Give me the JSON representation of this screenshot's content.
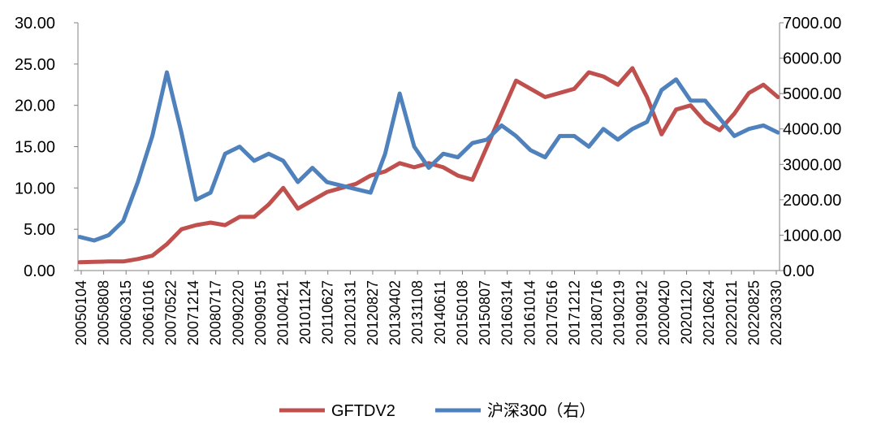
{
  "chart_data": {
    "type": "line",
    "title": "",
    "xlabel": "",
    "ylabel": "",
    "ylabel_right": "",
    "ylim": [
      0,
      30
    ],
    "ylim_right": [
      0,
      7000
    ],
    "grid": false,
    "legend_position": "bottom",
    "y_ticks_left": [
      "0.00",
      "5.00",
      "10.00",
      "15.00",
      "20.00",
      "25.00",
      "30.00"
    ],
    "y_ticks_right": [
      "0.00",
      "1000.00",
      "2000.00",
      "3000.00",
      "4000.00",
      "5000.00",
      "6000.00",
      "7000.00"
    ],
    "x_tick_labels": [
      "20050104",
      "20050808",
      "20060315",
      "20061016",
      "20070522",
      "20071214",
      "20080717",
      "20090220",
      "20090915",
      "20100421",
      "20101124",
      "20110627",
      "20120131",
      "20120827",
      "20130402",
      "20131108",
      "20140611",
      "20150108",
      "20150807",
      "20160314",
      "20161014",
      "20170516",
      "20171212",
      "20180716",
      "20190219",
      "20190912",
      "20200420",
      "20201120",
      "20210624",
      "20220121",
      "20220825",
      "20230330"
    ],
    "series": [
      {
        "name": "GFTDV2",
        "axis": "left",
        "color": "#C0504D",
        "values": [
          1.0,
          1.05,
          1.1,
          1.1,
          1.4,
          1.8,
          3.2,
          5.0,
          5.5,
          5.8,
          5.5,
          6.5,
          6.5,
          8.0,
          10.0,
          7.5,
          8.5,
          9.5,
          10.0,
          10.5,
          11.5,
          12.0,
          13.0,
          12.5,
          13.0,
          12.5,
          11.5,
          11.0,
          15.0,
          19.0,
          23.0,
          22.0,
          21.0,
          21.5,
          22.0,
          24.0,
          23.5,
          22.5,
          24.5,
          21.0,
          16.5,
          19.5,
          20.0,
          18.0,
          17.0,
          19.0,
          21.5,
          22.5,
          21.0
        ]
      },
      {
        "name": "沪深300（右）",
        "axis": "right",
        "color": "#4F81BD",
        "values": [
          950,
          850,
          1000,
          1400,
          2500,
          3800,
          5600,
          3900,
          2000,
          2200,
          3300,
          3500,
          3100,
          3300,
          3100,
          2500,
          2900,
          2500,
          2400,
          2300,
          2200,
          3300,
          5000,
          3500,
          2900,
          3300,
          3200,
          3600,
          3700,
          4100,
          3800,
          3400,
          3200,
          3800,
          3800,
          3500,
          4000,
          3700,
          4000,
          4200,
          5100,
          5400,
          4800,
          4800,
          4300,
          3800,
          4000,
          4100,
          3900
        ]
      }
    ]
  }
}
